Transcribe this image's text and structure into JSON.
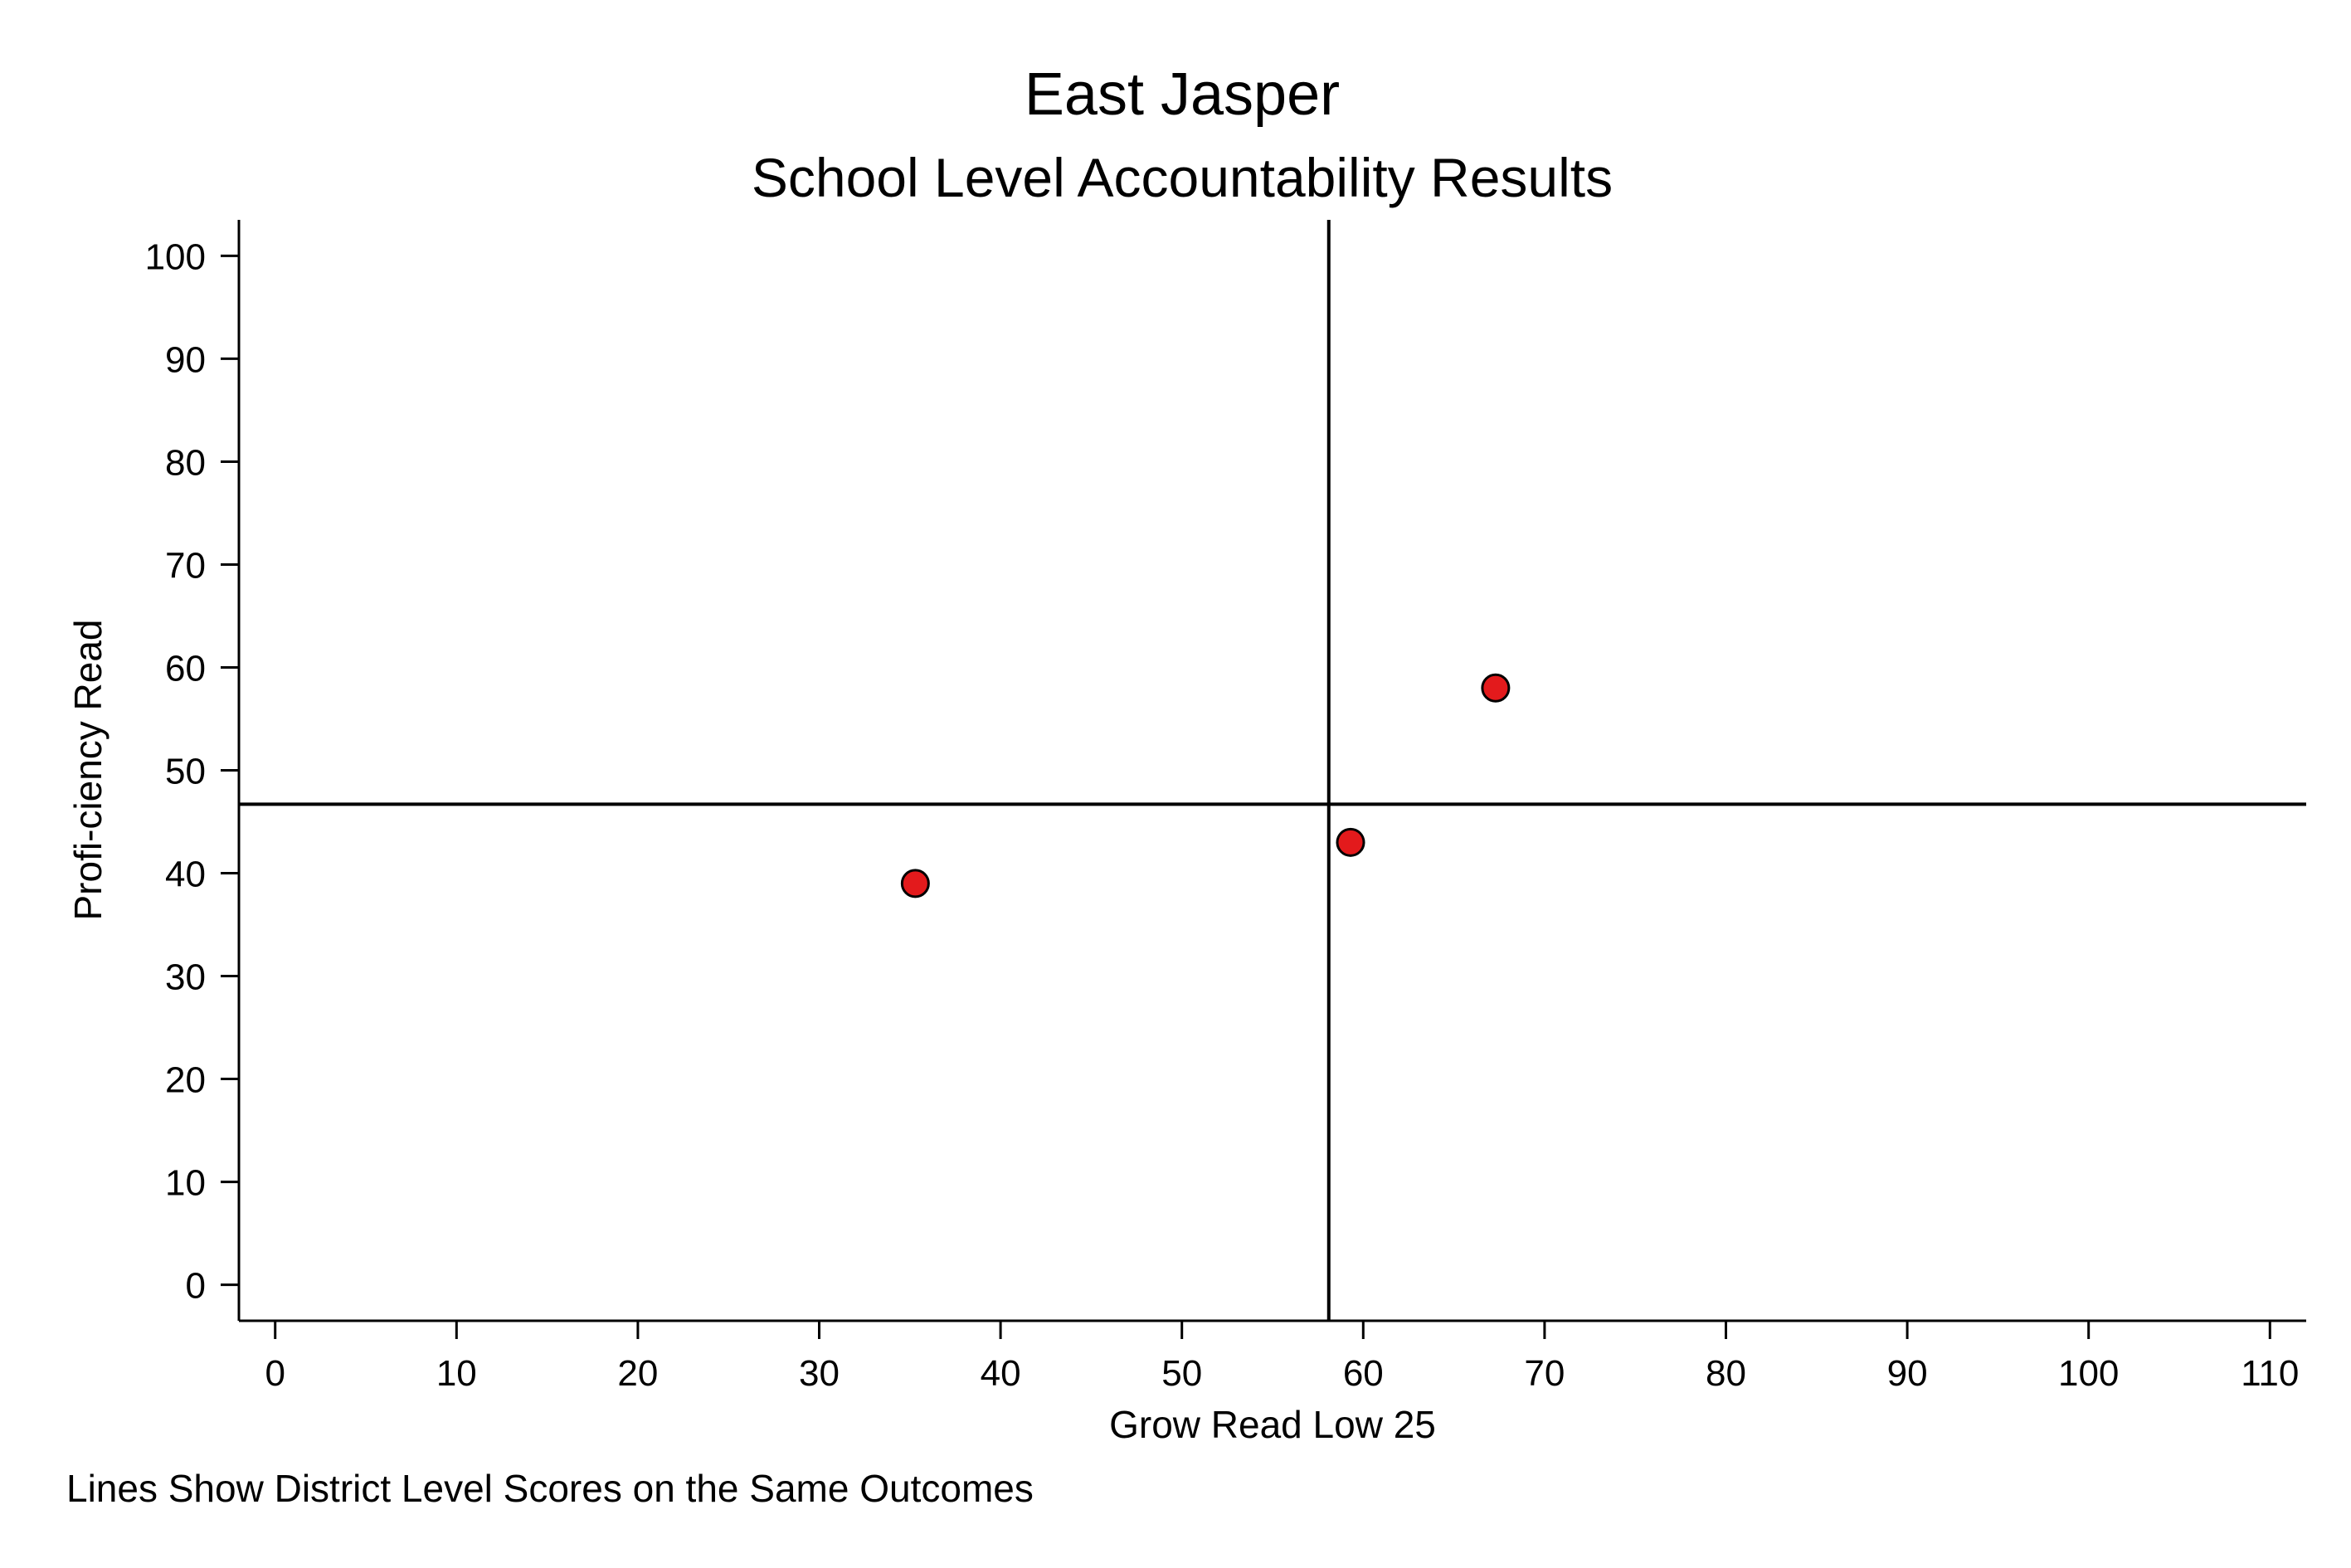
{
  "chart_data": {
    "type": "scatter",
    "title": "East Jasper",
    "subtitle": "School Level Accountability Results",
    "xlabel": "Grow Read Low 25",
    "ylabel": "Profi-ciency Read",
    "note": "Lines Show District Level Scores on the Same Outcomes",
    "xlim": [
      -2,
      112
    ],
    "ylim": [
      -3.5,
      103.5
    ],
    "xticks": [
      0,
      10,
      20,
      30,
      40,
      50,
      60,
      70,
      80,
      90,
      100,
      110
    ],
    "yticks": [
      0,
      10,
      20,
      30,
      40,
      50,
      60,
      70,
      80,
      90,
      100
    ],
    "grid": false,
    "points": [
      {
        "x": 35.3,
        "y": 39
      },
      {
        "x": 59.3,
        "y": 43
      },
      {
        "x": 67.3,
        "y": 58
      }
    ],
    "reference_lines": {
      "x": 58.1,
      "y": 46.7
    },
    "marker_color": "#e31a1c",
    "marker_edge_color": "#000000"
  }
}
